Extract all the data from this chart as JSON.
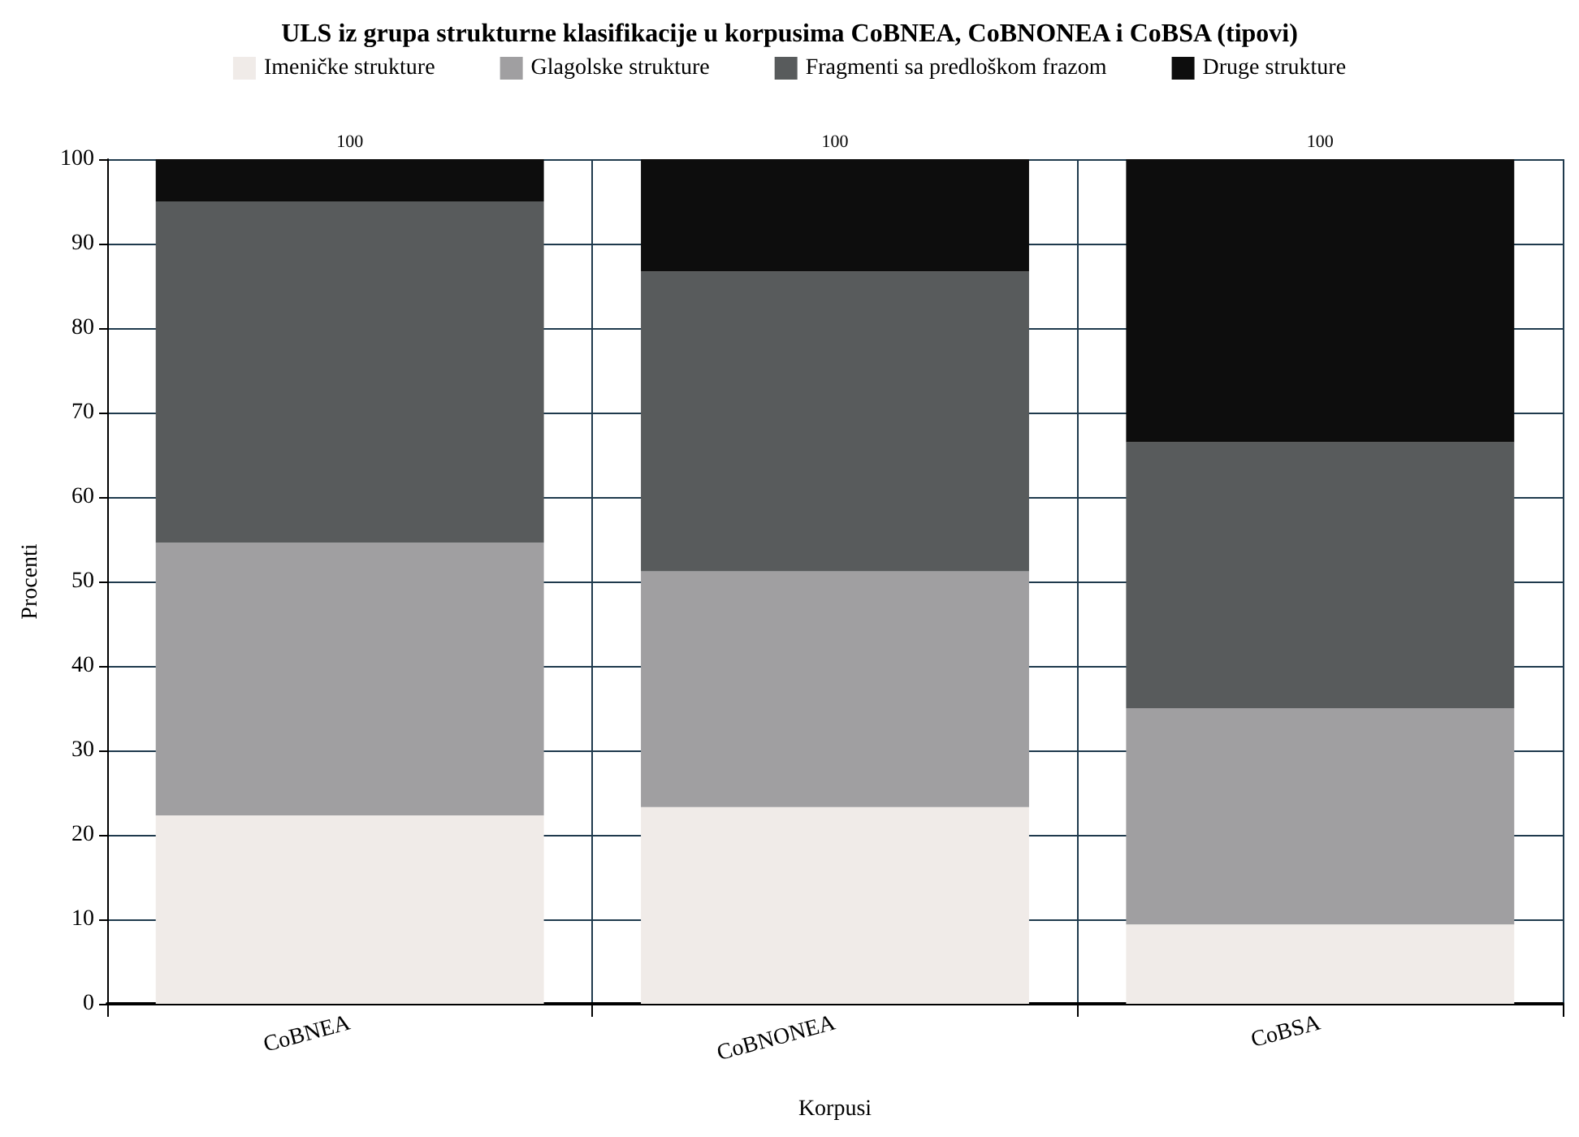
{
  "chart_data": {
    "type": "bar",
    "stacked": true,
    "title": "ULS iz grupa strukturne klasifikacije u korpusima CoBNEA, CoBNONEA i CoBSA (tipovi)",
    "xlabel": "Korpusi",
    "ylabel": "Procenti",
    "categories": [
      "CoBNEA",
      "CoBNONEA",
      "CoBSA"
    ],
    "series": [
      {
        "name": "Imeničke strukture",
        "color": "#f0ebe8",
        "values": [
          22.3,
          23.3,
          9.4
        ]
      },
      {
        "name": "Glagolske strukture",
        "color": "#a09fa1",
        "values": [
          32.3,
          27.9,
          25.6
        ]
      },
      {
        "name": "Fragmenti sa predloškom frazom",
        "color": "#585b5c",
        "values": [
          40.4,
          35.5,
          31.5
        ]
      },
      {
        "name": "Druge strukture",
        "color": "#0d0d0d",
        "values": [
          5.0,
          13.3,
          33.5
        ]
      }
    ],
    "totals": [
      "100",
      "100",
      "100"
    ],
    "ylim": [
      0,
      100
    ],
    "yticks": [
      0,
      10,
      20,
      30,
      40,
      50,
      60,
      70,
      80,
      90,
      100
    ],
    "grid": true,
    "legend": "top"
  }
}
